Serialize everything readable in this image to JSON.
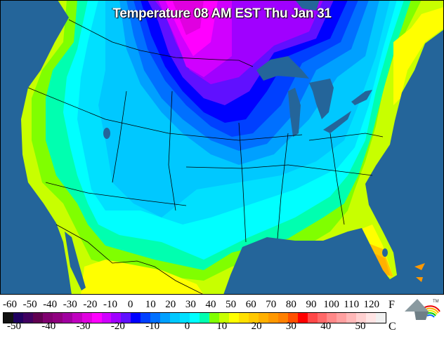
{
  "title": "Temperature 08 AM EST Thu Jan 31",
  "legend": {
    "fahrenheit_unit": "F",
    "celsius_unit": "C",
    "fahrenheit_ticks": [
      "-60",
      "-50",
      "-40",
      "-30",
      "-20",
      "-10",
      "0",
      "10",
      "20",
      "30",
      "40",
      "50",
      "60",
      "70",
      "80",
      "90",
      "100",
      "110",
      "120"
    ],
    "celsius_ticks": [
      "-50",
      "-40",
      "-30",
      "-20",
      "-10",
      "0",
      "10",
      "20",
      "30",
      "40",
      "50"
    ],
    "colors": [
      "#111111",
      "#200060",
      "#400060",
      "#600050",
      "#800070",
      "#900080",
      "#a000a0",
      "#c000c0",
      "#e000e0",
      "#ff00ff",
      "#d000ff",
      "#a000ff",
      "#6010ff",
      "#0000ff",
      "#0040ff",
      "#0070ff",
      "#00a0ff",
      "#00c8ff",
      "#00e0ff",
      "#00ffff",
      "#00ffb0",
      "#80ff00",
      "#c8ff00",
      "#ffff00",
      "#ffe000",
      "#ffc800",
      "#ffb000",
      "#ff9800",
      "#ff8000",
      "#ff5000",
      "#ff0000",
      "#ff4848",
      "#ff6868",
      "#ff8888",
      "#ffa0a0",
      "#ffb8b8",
      "#ffd0d0",
      "#ffe4e4",
      "#f0f0f0"
    ]
  },
  "logo": {
    "trademark": "TM"
  },
  "colors": {
    "ocean": "#24659a",
    "lakes": "#24659a",
    "borders": "#000000"
  }
}
